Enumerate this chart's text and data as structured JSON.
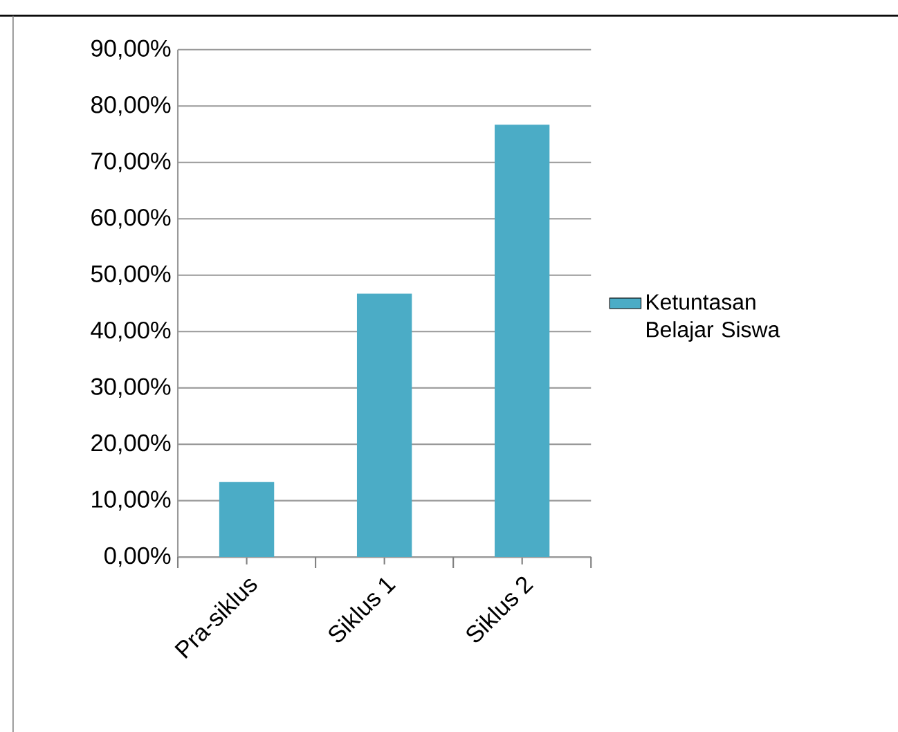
{
  "chart_data": {
    "type": "bar",
    "categories": [
      "Pra-siklus",
      "Siklus 1",
      "Siklus 2"
    ],
    "series": [
      {
        "name": "Ketuntasan Belajar Siswa",
        "color": "#4bacc6",
        "values": [
          13.3,
          46.7,
          76.7
        ]
      }
    ],
    "ylim": [
      0,
      90
    ],
    "yticks": [
      {
        "value": 0,
        "label": "0,00%"
      },
      {
        "value": 10,
        "label": "10,00%"
      },
      {
        "value": 20,
        "label": "20,00%"
      },
      {
        "value": 30,
        "label": "30,00%"
      },
      {
        "value": 40,
        "label": "40,00%"
      },
      {
        "value": 50,
        "label": "50,00%"
      },
      {
        "value": 60,
        "label": "60,00%"
      },
      {
        "value": 70,
        "label": "70,00%"
      },
      {
        "value": 80,
        "label": "80,00%"
      },
      {
        "value": 90,
        "label": "90,00%"
      }
    ],
    "grid": "y",
    "legend": "right"
  }
}
